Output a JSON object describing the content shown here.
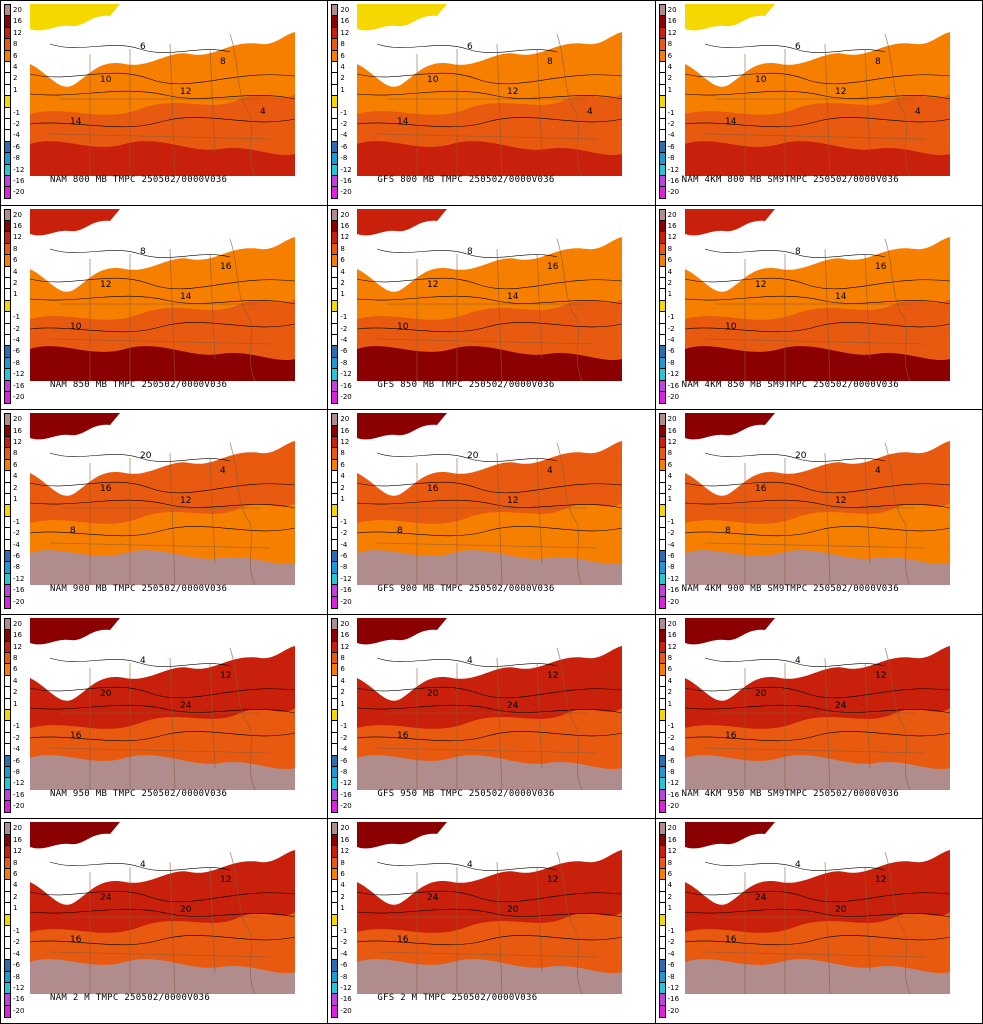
{
  "colorbar": {
    "entries": [
      {
        "label": "20",
        "color": "#b08c8c"
      },
      {
        "label": "16",
        "color": "#8b0000"
      },
      {
        "label": "12",
        "color": "#c8200a"
      },
      {
        "label": "8",
        "color": "#e85a10"
      },
      {
        "label": "6",
        "color": "#f77f00"
      },
      {
        "label": "4",
        "color": "#ffffff"
      },
      {
        "label": "2",
        "color": "#ffffff"
      },
      {
        "label": "1",
        "color": "#ffffff"
      },
      {
        "label": "",
        "color": "#f5d800"
      },
      {
        "label": "-1",
        "color": "#ffffff"
      },
      {
        "label": "-2",
        "color": "#ffffff"
      },
      {
        "label": "-4",
        "color": "#ffffff"
      },
      {
        "label": "-6",
        "color": "#2a6fb0"
      },
      {
        "label": "-8",
        "color": "#1a9ad6"
      },
      {
        "label": "-12",
        "color": "#22c8d8"
      },
      {
        "label": "-16",
        "color": "#c040e0"
      },
      {
        "label": "-20",
        "color": "#e020e0"
      }
    ]
  },
  "panels": [
    {
      "caption": "NAM 800 MB TMPC 250502/0000V036",
      "palette": [
        "#f77f00",
        "#e85a10",
        "#ffffff",
        "#f5d800",
        "#c8200a"
      ]
    },
    {
      "caption": "GFS 800 MB TMPC 250502/0000V036",
      "palette": [
        "#f77f00",
        "#e85a10",
        "#ffffff",
        "#f5d800",
        "#c8200a"
      ]
    },
    {
      "caption": "NAM 4KM 800 MB SM9TMPC 250502/0000V036",
      "palette": [
        "#f77f00",
        "#e85a10",
        "#ffffff",
        "#f5d800",
        "#c8200a"
      ]
    },
    {
      "caption": "NAM 850 MB TMPC 250502/0000V036",
      "palette": [
        "#f77f00",
        "#e85a10",
        "#ffffff",
        "#c8200a",
        "#8b0000"
      ]
    },
    {
      "caption": "GFS 850 MB TMPC 250502/0000V036",
      "palette": [
        "#f77f00",
        "#e85a10",
        "#ffffff",
        "#c8200a",
        "#8b0000"
      ]
    },
    {
      "caption": "NAM 4KM 850 MB SM9TMPC 250502/0000V036",
      "palette": [
        "#f77f00",
        "#e85a10",
        "#ffffff",
        "#c8200a",
        "#8b0000"
      ]
    },
    {
      "caption": "NAM 900 MB TMPC 250502/0000V036",
      "palette": [
        "#e85a10",
        "#f77f00",
        "#ffffff",
        "#8b0000",
        "#b08c8c"
      ]
    },
    {
      "caption": "GFS 900 MB TMPC 250502/0000V036",
      "palette": [
        "#e85a10",
        "#f77f00",
        "#ffffff",
        "#8b0000",
        "#b08c8c"
      ]
    },
    {
      "caption": "NAM 4KM 900 MB SM9TMPC 250502/0000V036",
      "palette": [
        "#e85a10",
        "#f77f00",
        "#ffffff",
        "#8b0000",
        "#b08c8c"
      ]
    },
    {
      "caption": "NAM 950 MB TMPC 250502/0000V036",
      "palette": [
        "#c8200a",
        "#e85a10",
        "#ffffff",
        "#8b0000",
        "#b08c8c"
      ]
    },
    {
      "caption": "GFS 950 MB TMPC 250502/0000V036",
      "palette": [
        "#c8200a",
        "#e85a10",
        "#ffffff",
        "#8b0000",
        "#b08c8c"
      ]
    },
    {
      "caption": "NAM 4KM 950 MB SM9TMPC 250502/0000V036",
      "palette": [
        "#c8200a",
        "#e85a10",
        "#ffffff",
        "#8b0000",
        "#b08c8c"
      ]
    },
    {
      "caption": "NAM 2 M TMPC 250502/0000V036",
      "palette": [
        "#c8200a",
        "#e85a10",
        "#ffffff",
        "#8b0000",
        "#b08c8c"
      ]
    },
    {
      "caption": "GFS 2 M TMPC 250502/0000V036",
      "palette": [
        "#c8200a",
        "#e85a10",
        "#ffffff",
        "#8b0000",
        "#b08c8c"
      ]
    },
    {
      "caption": "",
      "palette": [
        "#c8200a",
        "#e85a10",
        "#ffffff",
        "#8b0000",
        "#b08c8c"
      ]
    }
  ],
  "contour_labels": {
    "800": [
      "10",
      "12",
      "14",
      "8",
      "6",
      "4"
    ],
    "850": [
      "12",
      "14",
      "10",
      "16",
      "8"
    ],
    "900": [
      "16",
      "12",
      "8",
      "4",
      "20"
    ],
    "950": [
      "20",
      "24",
      "16",
      "12",
      "4"
    ],
    "2m": [
      "24",
      "20",
      "16",
      "12",
      "4"
    ]
  }
}
